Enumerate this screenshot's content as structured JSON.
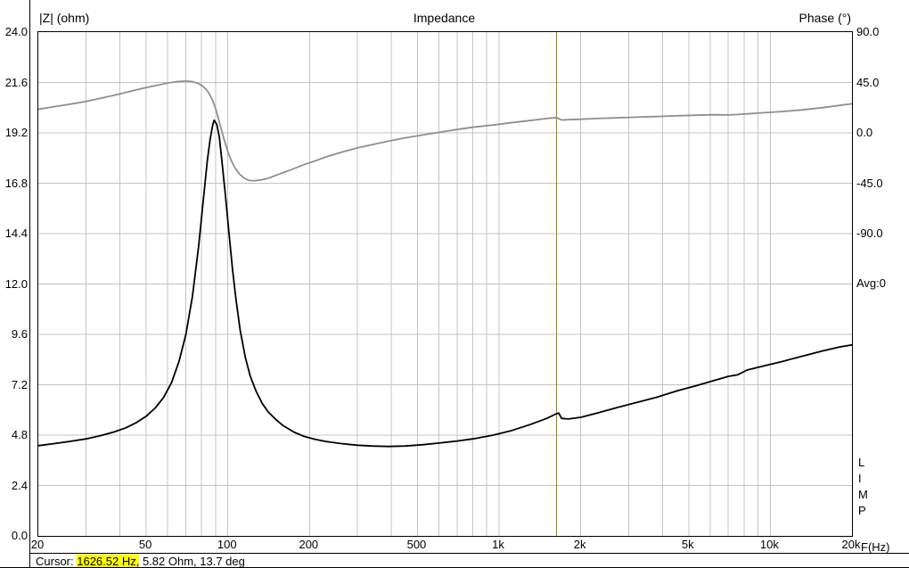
{
  "header": {
    "left_axis_label": "|Z| (ohm)",
    "title": "Impedance",
    "right_axis_label": "Phase (°)"
  },
  "right_panel": {
    "avg": "Avg:0",
    "limp": [
      "L",
      "I",
      "M",
      "P"
    ],
    "x_axis_label": "F(Hz)"
  },
  "status_bar": {
    "prefix": "Cursor: ",
    "highlighted": "1626.52 Hz,",
    "rest": " 5.82 Ohm, 13.7 deg",
    "highlight_color": "#ffff00"
  },
  "chart_data": {
    "type": "line",
    "title": "Impedance",
    "x_axis": {
      "label": "F(Hz)",
      "scale": "log",
      "min": 20,
      "max": 20000,
      "major_ticks": [
        {
          "value": 20,
          "label": "20"
        },
        {
          "value": 50,
          "label": "50"
        },
        {
          "value": 100,
          "label": "100"
        },
        {
          "value": 200,
          "label": "200"
        },
        {
          "value": 500,
          "label": "500"
        },
        {
          "value": 1000,
          "label": "1k"
        },
        {
          "value": 2000,
          "label": "2k"
        },
        {
          "value": 5000,
          "label": "5k"
        },
        {
          "value": 10000,
          "label": "10k"
        },
        {
          "value": 20000,
          "label": "20k"
        }
      ]
    },
    "y_left": {
      "label": "|Z| (ohm)",
      "min": 0,
      "max": 24,
      "step": 2.4,
      "ticks": [
        "24.0",
        "21.6",
        "19.2",
        "16.8",
        "14.4",
        "12.0",
        "9.6",
        "7.2",
        "4.8",
        "2.4",
        "0.0"
      ]
    },
    "y_right": {
      "label": "Phase (°)",
      "zero_ohm": 19.2,
      "ohm_per_90deg": 4.8,
      "ticks": [
        {
          "label": "90.0",
          "ohm": 24
        },
        {
          "label": "45.0",
          "ohm": 21.6
        },
        {
          "label": "0.0",
          "ohm": 19.2
        },
        {
          "label": "-45.0",
          "ohm": 16.8
        },
        {
          "label": "-90.0",
          "ohm": 14.4
        }
      ]
    },
    "grid": {
      "color": "#c4c4c4",
      "on": true
    },
    "cursor": {
      "frequency_hz": 1626.52,
      "impedance_ohm": 5.82,
      "phase_deg": 13.7,
      "color": "#8f8f00"
    },
    "series": [
      {
        "name": "impedance_ohm",
        "color": "#000000",
        "width": 1.8,
        "axis": "left",
        "points": [
          [
            20,
            4.3
          ],
          [
            23,
            4.4
          ],
          [
            26,
            4.5
          ],
          [
            30,
            4.62
          ],
          [
            34,
            4.78
          ],
          [
            38,
            4.95
          ],
          [
            42,
            5.15
          ],
          [
            46,
            5.4
          ],
          [
            50,
            5.7
          ],
          [
            54,
            6.1
          ],
          [
            58,
            6.6
          ],
          [
            62,
            7.3
          ],
          [
            66,
            8.3
          ],
          [
            70,
            9.6
          ],
          [
            74,
            11.4
          ],
          [
            78,
            13.8
          ],
          [
            81,
            15.9
          ],
          [
            84,
            17.9
          ],
          [
            86,
            18.9
          ],
          [
            88,
            19.6
          ],
          [
            89,
            19.8
          ],
          [
            91,
            19.6
          ],
          [
            93,
            19.0
          ],
          [
            95,
            17.9
          ],
          [
            98,
            16.2
          ],
          [
            101,
            14.4
          ],
          [
            104,
            12.7
          ],
          [
            107,
            11.3
          ],
          [
            111,
            9.8
          ],
          [
            116,
            8.5
          ],
          [
            121,
            7.6
          ],
          [
            127,
            6.9
          ],
          [
            134,
            6.3
          ],
          [
            141,
            5.9
          ],
          [
            150,
            5.55
          ],
          [
            160,
            5.25
          ],
          [
            175,
            4.95
          ],
          [
            190,
            4.75
          ],
          [
            210,
            4.6
          ],
          [
            230,
            4.5
          ],
          [
            260,
            4.4
          ],
          [
            300,
            4.32
          ],
          [
            340,
            4.28
          ],
          [
            390,
            4.26
          ],
          [
            450,
            4.28
          ],
          [
            520,
            4.34
          ],
          [
            600,
            4.42
          ],
          [
            700,
            4.52
          ],
          [
            800,
            4.62
          ],
          [
            950,
            4.8
          ],
          [
            1100,
            5.0
          ],
          [
            1300,
            5.3
          ],
          [
            1500,
            5.6
          ],
          [
            1626,
            5.82
          ],
          [
            1660,
            5.85
          ],
          [
            1700,
            5.6
          ],
          [
            1800,
            5.57
          ],
          [
            2000,
            5.65
          ],
          [
            2300,
            5.85
          ],
          [
            2700,
            6.1
          ],
          [
            3200,
            6.35
          ],
          [
            3800,
            6.6
          ],
          [
            4500,
            6.9
          ],
          [
            5300,
            7.15
          ],
          [
            6200,
            7.4
          ],
          [
            7000,
            7.6
          ],
          [
            7600,
            7.68
          ],
          [
            8200,
            7.9
          ],
          [
            9500,
            8.1
          ],
          [
            11000,
            8.3
          ],
          [
            13000,
            8.55
          ],
          [
            15500,
            8.8
          ],
          [
            18000,
            9.0
          ],
          [
            20000,
            9.1
          ]
        ]
      },
      {
        "name": "phase_deg",
        "color": "#8f8f8f",
        "width": 1.8,
        "axis": "right",
        "points": [
          [
            20,
            21
          ],
          [
            23,
            23.5
          ],
          [
            26,
            25.5
          ],
          [
            30,
            28
          ],
          [
            34,
            31
          ],
          [
            38,
            33.5
          ],
          [
            42,
            36
          ],
          [
            46,
            38.5
          ],
          [
            50,
            40.5
          ],
          [
            55,
            42.5
          ],
          [
            60,
            44.5
          ],
          [
            65,
            45.8
          ],
          [
            70,
            46.3
          ],
          [
            74,
            45.8
          ],
          [
            78,
            44
          ],
          [
            81,
            41.5
          ],
          [
            84,
            37.5
          ],
          [
            86,
            33.5
          ],
          [
            88,
            28.5
          ],
          [
            90,
            22
          ],
          [
            92,
            14
          ],
          [
            94,
            5.5
          ],
          [
            97,
            -6.5
          ],
          [
            100,
            -17
          ],
          [
            103,
            -25
          ],
          [
            106,
            -31
          ],
          [
            110,
            -36.5
          ],
          [
            115,
            -40.5
          ],
          [
            120,
            -42.5
          ],
          [
            126,
            -42.8
          ],
          [
            133,
            -42
          ],
          [
            141,
            -40.5
          ],
          [
            150,
            -38
          ],
          [
            160,
            -35.5
          ],
          [
            175,
            -32
          ],
          [
            190,
            -28.5
          ],
          [
            210,
            -25
          ],
          [
            230,
            -21.5
          ],
          [
            260,
            -17.5
          ],
          [
            300,
            -13.5
          ],
          [
            340,
            -10.5
          ],
          [
            390,
            -7.5
          ],
          [
            450,
            -4.5
          ],
          [
            520,
            -2
          ],
          [
            600,
            0.5
          ],
          [
            700,
            3
          ],
          [
            800,
            5
          ],
          [
            950,
            7
          ],
          [
            1100,
            9
          ],
          [
            1300,
            11
          ],
          [
            1500,
            12.8
          ],
          [
            1626,
            13.7
          ],
          [
            1700,
            11.5
          ],
          [
            1800,
            11.8
          ],
          [
            2000,
            12.2
          ],
          [
            2300,
            12.8
          ],
          [
            2700,
            13.4
          ],
          [
            3200,
            14
          ],
          [
            3800,
            14.6
          ],
          [
            4500,
            15.2
          ],
          [
            5300,
            15.8
          ],
          [
            6200,
            16.2
          ],
          [
            7000,
            16
          ],
          [
            7600,
            16.4
          ],
          [
            8200,
            17
          ],
          [
            9500,
            18
          ],
          [
            11000,
            19
          ],
          [
            13000,
            20.5
          ],
          [
            15500,
            22.5
          ],
          [
            18000,
            24.5
          ],
          [
            20000,
            26
          ]
        ]
      }
    ]
  }
}
